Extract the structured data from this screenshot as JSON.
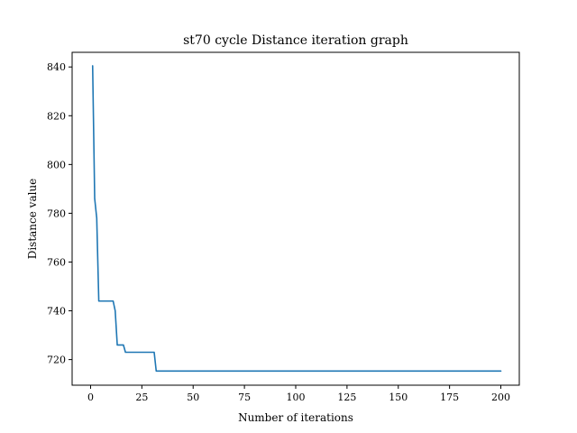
{
  "chart_data": {
    "type": "line",
    "title": "st70 cycle Distance iteration graph",
    "xlabel": "Number of iterations",
    "ylabel": "Distance value",
    "xlim": [
      -9,
      209
    ],
    "ylim": [
      709.5,
      846.0
    ],
    "xticks": [
      0,
      25,
      50,
      75,
      100,
      125,
      150,
      175,
      200
    ],
    "yticks": [
      720,
      740,
      760,
      780,
      800,
      820,
      840
    ],
    "grid": false,
    "legend": "none",
    "series": [
      {
        "color": "#1f77b4",
        "x": [
          1,
          2,
          3,
          4,
          5,
          6,
          7,
          8,
          9,
          10,
          11,
          12,
          13,
          14,
          15,
          16,
          17,
          18,
          19,
          20,
          21,
          22,
          23,
          24,
          25,
          26,
          27,
          28,
          29,
          30,
          31,
          32,
          33,
          40,
          50,
          75,
          100,
          125,
          150,
          175,
          200
        ],
        "y": [
          840.5,
          786,
          778,
          744,
          744,
          744,
          744,
          744,
          744,
          744,
          744,
          740,
          726,
          726,
          726,
          726,
          723,
          723,
          723,
          723,
          723,
          723,
          723,
          723,
          723,
          723,
          723,
          723,
          723,
          723,
          723,
          715.3,
          715.3,
          715.3,
          715.3,
          715.3,
          715.3,
          715.3,
          715.3,
          715.3,
          715.3
        ]
      }
    ]
  }
}
